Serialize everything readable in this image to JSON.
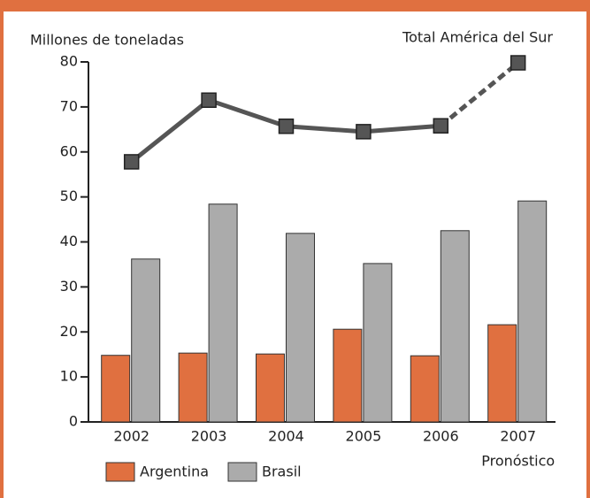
{
  "chart_data": {
    "type": "bar",
    "y_axis_label": "Millones de toneladas",
    "categories": [
      "2002",
      "2003",
      "2004",
      "2005",
      "2006",
      "2007"
    ],
    "x_sublabels": [
      null,
      null,
      null,
      null,
      null,
      "Pronóstico"
    ],
    "series": [
      {
        "name": "Argentina",
        "type": "bar",
        "color": "#e07040",
        "values": [
          14.8,
          15.3,
          15.1,
          20.6,
          14.7,
          21.6
        ]
      },
      {
        "name": "Brasil",
        "type": "bar",
        "color": "#ababab",
        "values": [
          36.2,
          48.4,
          41.9,
          35.2,
          42.5,
          49.1
        ]
      },
      {
        "name": "Total América del Sur",
        "type": "line",
        "color": "#555555",
        "values": [
          57.8,
          71.5,
          65.7,
          64.5,
          65.8,
          79.8
        ],
        "segment_styles": [
          "solid",
          "solid",
          "solid",
          "solid",
          "dashed"
        ]
      }
    ],
    "ylim": [
      0,
      80
    ],
    "yticks": [
      0,
      10,
      20,
      30,
      40,
      50,
      60,
      70,
      80
    ],
    "legend": "bottom-left"
  }
}
